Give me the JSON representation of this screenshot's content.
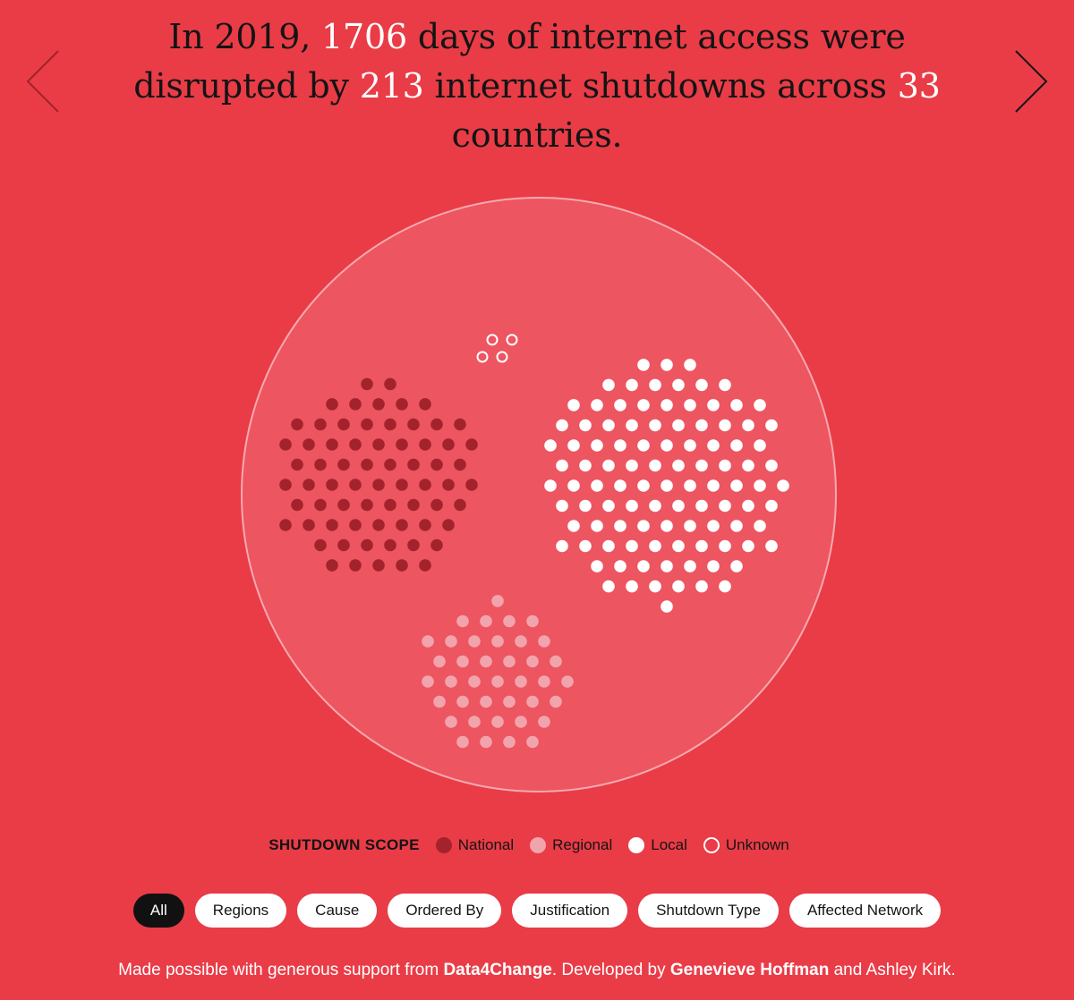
{
  "headline": {
    "p1": "In 2019, ",
    "days": "1706",
    "p2": " days of internet access were disrupted by ",
    "shutdowns": "213",
    "p3": " internet shutdowns across ",
    "countries": "33",
    "p4": " countries."
  },
  "nav": {
    "prev_icon": "chevron-left-icon",
    "next_icon": "chevron-right-icon"
  },
  "colors": {
    "background": "#e93c47",
    "bubble": "#ed5560",
    "national": "#a3232d",
    "regional": "#f2a4ad",
    "local": "#ffffff",
    "unknown": "#ffffff"
  },
  "chart_data": {
    "type": "scatter",
    "title": "",
    "unit_note": "one dot per internet shutdown",
    "series": [
      {
        "name": "National",
        "count": 68
      },
      {
        "name": "Regional",
        "count": 39
      },
      {
        "name": "Local",
        "count": 102
      },
      {
        "name": "Unknown",
        "count": 4
      }
    ]
  },
  "legend": {
    "title": "SHUTDOWN SCOPE",
    "items": [
      {
        "label": "National",
        "class": "sw-national"
      },
      {
        "label": "Regional",
        "class": "sw-regional"
      },
      {
        "label": "Local",
        "class": "sw-local"
      },
      {
        "label": "Unknown",
        "class": "sw-unknown"
      }
    ]
  },
  "filters": {
    "active": "All",
    "buttons": [
      "All",
      "Regions",
      "Cause",
      "Ordered By",
      "Justification",
      "Shutdown Type",
      "Affected Network"
    ]
  },
  "footer": {
    "p1": "Made possible with generous support from ",
    "sponsor": "Data4Change",
    "p2": ". Developed by ",
    "dev1": "Genevieve Hoffman",
    "p3": " and Ashley Kirk."
  }
}
